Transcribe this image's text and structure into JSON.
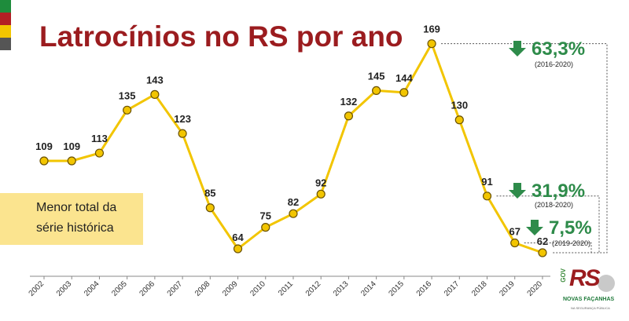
{
  "brand": {
    "stripes": [
      "#1e8c3c",
      "#b21f24",
      "#f2c500",
      "#555555"
    ],
    "gov_label": "GOV",
    "rs_label": "RS",
    "tagline": "NOVAS FAÇANHAS",
    "subline": "NA SEGURANÇA PÚBLICA"
  },
  "note": {
    "line1": "Menor total da",
    "line2": "série histórica"
  },
  "chart_data": {
    "type": "line",
    "title": "Latrocínios no RS por ano",
    "xlabel": "",
    "ylabel": "",
    "x": [
      "2002",
      "2003",
      "2004",
      "2005",
      "2006",
      "2007",
      "2008",
      "2009",
      "2010",
      "2011",
      "2012",
      "2013",
      "2014",
      "2015",
      "2016",
      "2017",
      "2018",
      "2019",
      "2020"
    ],
    "values": [
      109,
      109,
      113,
      135,
      143,
      123,
      85,
      64,
      75,
      82,
      92,
      132,
      145,
      144,
      169,
      130,
      91,
      67,
      62
    ],
    "ylim": [
      50,
      180
    ],
    "grid": false,
    "line_color": "#f2c500",
    "marker_color": "#f2c500",
    "annotations": [
      {
        "value": "63,3%",
        "period": "(2016-2020)",
        "direction": "down"
      },
      {
        "value": "31,9%",
        "period": "(2018-2020)",
        "direction": "down"
      },
      {
        "value": "7,5%",
        "period": "(2019-2020)",
        "direction": "down"
      }
    ],
    "annotation_color": "#2e8b4a"
  }
}
